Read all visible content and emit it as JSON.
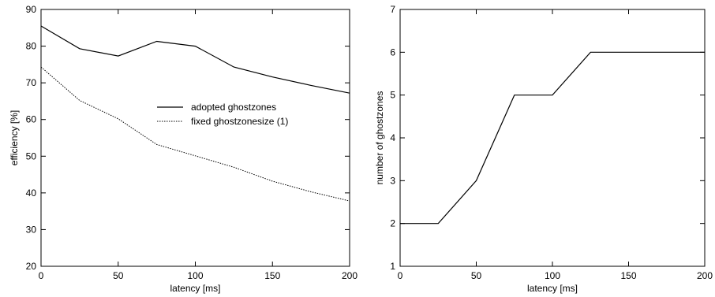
{
  "chart_data": [
    {
      "type": "line",
      "title": "",
      "xlabel": "latency [ms]",
      "ylabel": "efficiency [%]",
      "xlim": [
        0,
        200
      ],
      "ylim": [
        20,
        90
      ],
      "xticks": [
        "0",
        "50",
        "100",
        "150",
        "200"
      ],
      "yticks": [
        "20",
        "30",
        "40",
        "50",
        "60",
        "70",
        "80",
        "90"
      ],
      "grid": false,
      "legend_position": "center-right",
      "series": [
        {
          "name": "adopted ghostzones",
          "style": "solid",
          "x": [
            0,
            25,
            50,
            75,
            100,
            125,
            150,
            175,
            200
          ],
          "y": [
            85.5,
            79.3,
            77.3,
            81.3,
            80.0,
            74.3,
            71.6,
            69.3,
            67.2
          ]
        },
        {
          "name": "fixed ghostzonesize (1)",
          "style": "dotted",
          "x": [
            0,
            25,
            50,
            75,
            100,
            125,
            150,
            175,
            200
          ],
          "y": [
            74.3,
            65.2,
            60.2,
            53.2,
            50.1,
            47.0,
            43.2,
            40.3,
            37.8
          ]
        }
      ]
    },
    {
      "type": "line",
      "title": "",
      "xlabel": "latency [ms]",
      "ylabel": "number of ghostzones",
      "xlim": [
        0,
        200
      ],
      "ylim": [
        1,
        7
      ],
      "xticks": [
        "0",
        "50",
        "100",
        "150",
        "200"
      ],
      "yticks": [
        "1",
        "2",
        "3",
        "4",
        "5",
        "6",
        "7"
      ],
      "grid": false,
      "series": [
        {
          "style": "solid",
          "x": [
            0,
            25,
            50,
            75,
            100,
            125,
            150,
            175,
            200
          ],
          "y": [
            2,
            2,
            3,
            5,
            5,
            6,
            6,
            6,
            6
          ]
        }
      ]
    }
  ]
}
